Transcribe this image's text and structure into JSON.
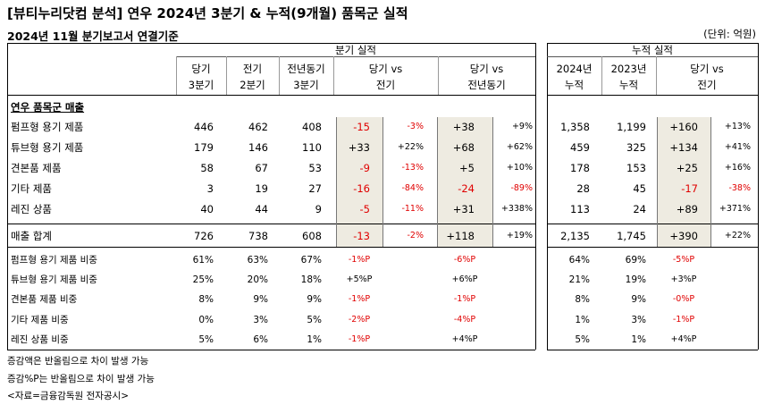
{
  "title": "[뷰티누리닷컴 분석] 연우 2024년 3분기 & 누적(9개월) 품목군 실적",
  "subtitle": "2024년 11월 분기보고서 연결기준",
  "unit": "(단위: 억원)",
  "headers": {
    "quarter_group": "분기 실적",
    "cum_group": "누적 실적",
    "q_cur": [
      "당기",
      "3분기"
    ],
    "q_prev": [
      "전기",
      "2분기"
    ],
    "q_ly": [
      "전년동기",
      "3분기"
    ],
    "q_vs_prev": [
      "당기 vs",
      "전기"
    ],
    "q_vs_ly": [
      "당기 vs",
      "전년동기"
    ],
    "c_cur": [
      "2024년",
      "누적"
    ],
    "c_prev": [
      "2023년",
      "누적"
    ],
    "c_vs": [
      "당기 vs",
      "전기"
    ]
  },
  "section_label": "연우 품목군 매출",
  "rows": [
    {
      "name": "펌프형 용기 제품",
      "q_cur": "446",
      "q_prev": "462",
      "q_ly": "408",
      "vs_prev": "-15",
      "vs_prev_pct": "-3%",
      "vs_ly": "+38",
      "vs_ly_pct": "+9%",
      "c_cur": "1,358",
      "c_prev": "1,199",
      "c_vs": "+160",
      "c_vs_pct": "+13%"
    },
    {
      "name": "튜브형 용기 제품",
      "q_cur": "179",
      "q_prev": "146",
      "q_ly": "110",
      "vs_prev": "+33",
      "vs_prev_pct": "+22%",
      "vs_ly": "+68",
      "vs_ly_pct": "+62%",
      "c_cur": "459",
      "c_prev": "325",
      "c_vs": "+134",
      "c_vs_pct": "+41%"
    },
    {
      "name": "견본품 제품",
      "q_cur": "58",
      "q_prev": "67",
      "q_ly": "53",
      "vs_prev": "-9",
      "vs_prev_pct": "-13%",
      "vs_ly": "+5",
      "vs_ly_pct": "+10%",
      "c_cur": "178",
      "c_prev": "153",
      "c_vs": "+25",
      "c_vs_pct": "+16%"
    },
    {
      "name": "기타 제품",
      "q_cur": "3",
      "q_prev": "19",
      "q_ly": "27",
      "vs_prev": "-16",
      "vs_prev_pct": "-84%",
      "vs_ly": "-24",
      "vs_ly_pct": "-89%",
      "c_cur": "28",
      "c_prev": "45",
      "c_vs": "-17",
      "c_vs_pct": "-38%"
    },
    {
      "name": "레진 상품",
      "q_cur": "40",
      "q_prev": "44",
      "q_ly": "9",
      "vs_prev": "-5",
      "vs_prev_pct": "-11%",
      "vs_ly": "+31",
      "vs_ly_pct": "+338%",
      "c_cur": "113",
      "c_prev": "24",
      "c_vs": "+89",
      "c_vs_pct": "+371%"
    }
  ],
  "total": {
    "name": "매출 합계",
    "q_cur": "726",
    "q_prev": "738",
    "q_ly": "608",
    "vs_prev": "-13",
    "vs_prev_pct": "-2%",
    "vs_ly": "+118",
    "vs_ly_pct": "+19%",
    "c_cur": "2,135",
    "c_prev": "1,745",
    "c_vs": "+390",
    "c_vs_pct": "+22%"
  },
  "ratios": [
    {
      "name": "펌프형 용기 제품 비중",
      "q_cur": "61%",
      "q_prev": "63%",
      "q_ly": "67%",
      "vs_prev": "-1%P",
      "vs_ly": "-6%P",
      "c_cur": "64%",
      "c_prev": "69%",
      "c_vs": "-5%P"
    },
    {
      "name": "튜브형 용기 제품 비중",
      "q_cur": "25%",
      "q_prev": "20%",
      "q_ly": "18%",
      "vs_prev": "+5%P",
      "vs_ly": "+6%P",
      "c_cur": "21%",
      "c_prev": "19%",
      "c_vs": "+3%P"
    },
    {
      "name": "견본품 제품 비중",
      "q_cur": "8%",
      "q_prev": "9%",
      "q_ly": "9%",
      "vs_prev": "-1%P",
      "vs_ly": "-1%P",
      "c_cur": "8%",
      "c_prev": "9%",
      "c_vs": "-0%P"
    },
    {
      "name": "기타 제품 비중",
      "q_cur": "0%",
      "q_prev": "3%",
      "q_ly": "5%",
      "vs_prev": "-2%P",
      "vs_ly": "-4%P",
      "c_cur": "1%",
      "c_prev": "3%",
      "c_vs": "-1%P"
    },
    {
      "name": "레진 상품 비중",
      "q_cur": "5%",
      "q_prev": "6%",
      "q_ly": "1%",
      "vs_prev": "-1%P",
      "vs_ly": "+4%P",
      "c_cur": "5%",
      "c_prev": "1%",
      "c_vs": "+4%P"
    }
  ],
  "notes": [
    "증감액은 반올림으로 차이 발생 가능",
    "증감%P는 반올림으로 차이 발생 가능",
    "<자료=금융감독원 전자공시>"
  ],
  "colors": {
    "negative": "#e00000",
    "shade": "#eeebe1"
  }
}
